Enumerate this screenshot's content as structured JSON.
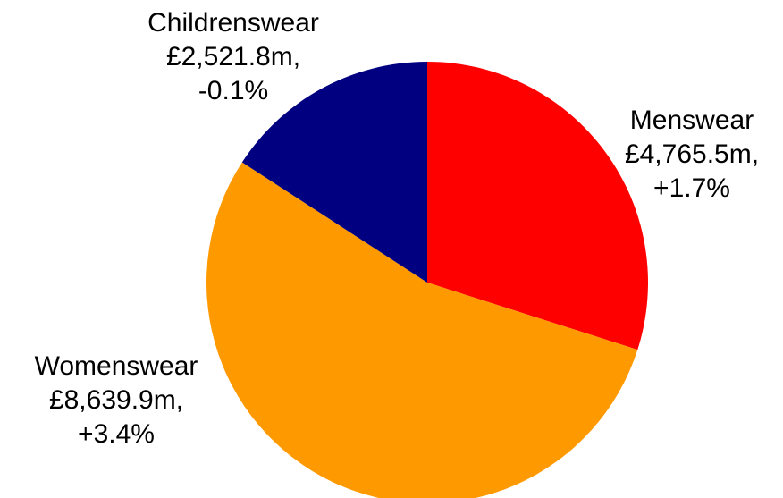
{
  "chart_data": {
    "type": "pie",
    "start_angle_deg": 0,
    "direction": "clockwise",
    "slices": [
      {
        "name": "Menswear",
        "value": 4765.5,
        "value_label": "£4,765.5m,",
        "change_label": "+1.7%",
        "color": "#FF0000"
      },
      {
        "name": "Womenswear",
        "value": 8639.9,
        "value_label": "£8,639.9m,",
        "change_label": "+3.4%",
        "color": "#FF9900"
      },
      {
        "name": "Childrenswear",
        "value": 2521.8,
        "value_label": "£2,521.8m,",
        "change_label": "-0.1%",
        "color": "#000080"
      }
    ]
  }
}
